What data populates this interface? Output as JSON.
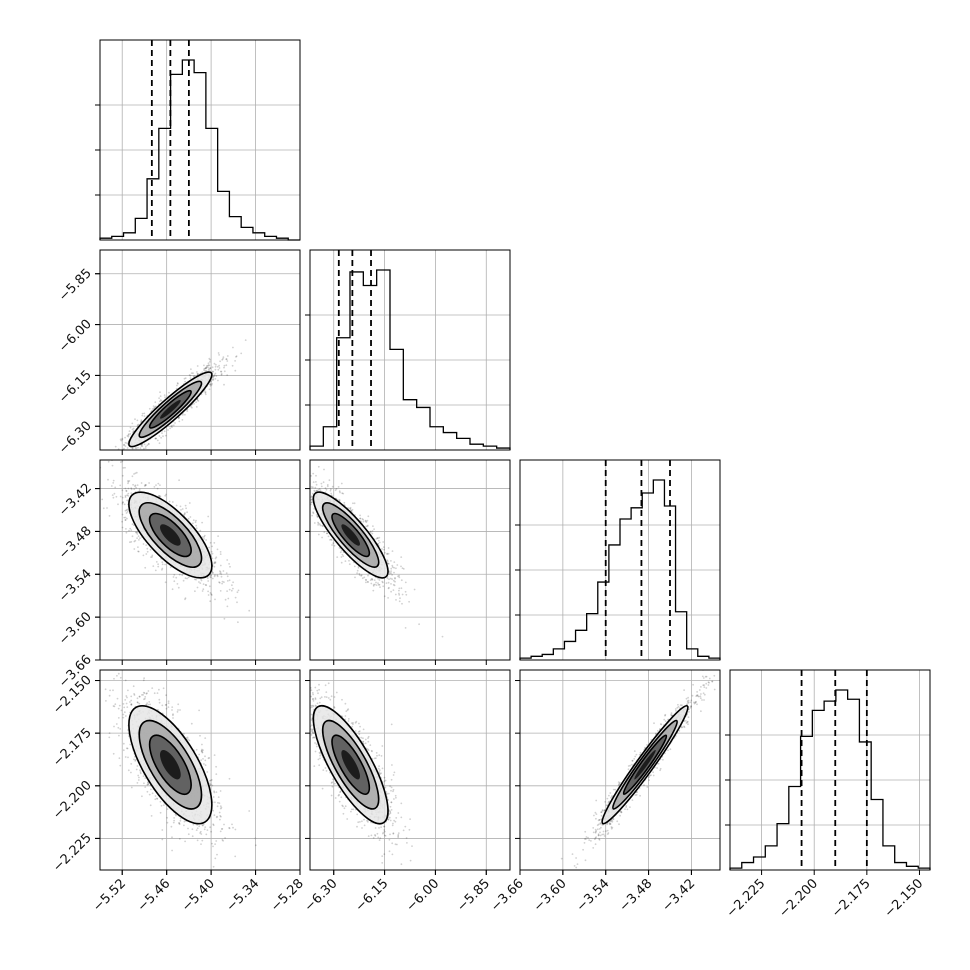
{
  "colors": {
    "ink": "#000000",
    "grid": "#b0b0b0",
    "scatter": "#000000",
    "density_light": "#f2f2f2",
    "density_dark": "#000000"
  },
  "chart_data": {
    "type": "corner",
    "title": "",
    "n_params": 4,
    "params": [
      {
        "mean": -5.455,
        "std": 0.028,
        "range": [
          -5.55,
          -5.28
        ],
        "ticks": [
          "-5.52",
          "-5.46",
          "-5.40",
          "-5.34",
          "-5.28"
        ],
        "tick_values": [
          -5.52,
          -5.46,
          -5.4,
          -5.34,
          -5.28
        ],
        "quantiles": [
          -5.48,
          -5.455,
          -5.43
        ],
        "hist_counts": [
          1,
          2,
          4,
          12,
          34,
          62,
          92,
          100,
          93,
          62,
          27,
          13,
          7,
          4,
          2,
          1,
          0
        ]
      },
      {
        "mean": -6.25,
        "std": 0.055,
        "range": [
          -6.37,
          -5.78
        ],
        "ticks": [
          "-6.30",
          "-6.15",
          "-6.00",
          "-5.85"
        ],
        "tick_values": [
          -6.3,
          -6.15,
          -6.0,
          -5.85
        ],
        "quantiles": [
          -6.285,
          -6.245,
          -6.19
        ],
        "hist_counts": [
          2,
          12,
          58,
          92,
          85,
          93,
          52,
          26,
          22,
          12,
          9,
          6,
          3,
          2,
          1
        ]
      },
      {
        "mean": -3.485,
        "std": 0.03,
        "range": [
          -3.66,
          -3.38
        ],
        "ticks": [
          "-3.66",
          "-3.60",
          "-3.54",
          "-3.48",
          "-3.42"
        ],
        "tick_values": [
          -3.66,
          -3.6,
          -3.54,
          -3.48,
          -3.42
        ],
        "quantiles": [
          -3.54,
          -3.49,
          -3.45
        ],
        "hist_counts": [
          1,
          2,
          3,
          6,
          10,
          16,
          25,
          42,
          62,
          76,
          82,
          90,
          97,
          83,
          26,
          6,
          2,
          1
        ]
      },
      {
        "mean": -2.19,
        "std": 0.014,
        "range": [
          -2.24,
          -2.145
        ],
        "ticks": [
          "-2.225",
          "-2.200",
          "-2.175",
          "-2.150"
        ],
        "tick_values": [
          -2.225,
          -2.2,
          -2.175,
          -2.15
        ],
        "quantiles": [
          -2.206,
          -2.19,
          -2.175
        ],
        "hist_counts": [
          1,
          4,
          7,
          13,
          25,
          45,
          72,
          86,
          91,
          97,
          92,
          69,
          38,
          13,
          4,
          2,
          1
        ]
      }
    ],
    "correlations": {
      "1-0": 0.93,
      "2-0": -0.72,
      "2-1": -0.85,
      "3-0": -0.68,
      "3-1": -0.78,
      "3-2": 0.97
    },
    "contour_levels": [
      "0.5 sigma",
      "1 sigma",
      "1.5 sigma",
      "2 sigma"
    ],
    "grid": true,
    "legend": "none"
  }
}
